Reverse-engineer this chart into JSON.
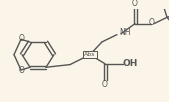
{
  "bg_color": "#faf5e8",
  "line_color": "#555555",
  "lw": 1.0,
  "figsize": [
    1.69,
    1.02
  ],
  "dpi": 100,
  "abs_label": "Abs",
  "nh_label": "NH",
  "oh_label": "OH"
}
